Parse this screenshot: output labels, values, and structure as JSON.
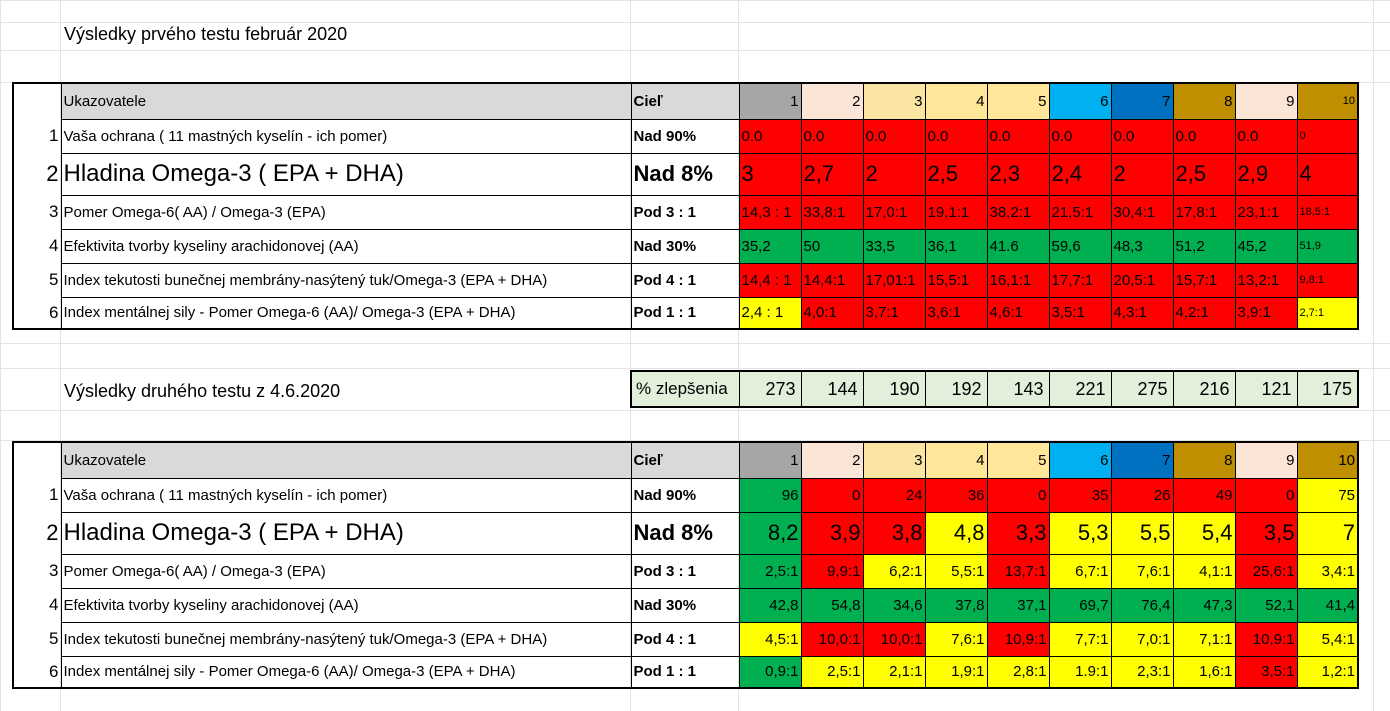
{
  "titles": {
    "first": "Výsledky prvého testu február 2020",
    "second": "Výsledky druhého testu z 4.6.2020"
  },
  "colors": {
    "red": "#ff0000",
    "green": "#00b050",
    "yellow": "#ffff00",
    "header_grey": "#d9d9d9",
    "improve_bg": "#e2efda",
    "col_colors": [
      "#a6a6a6",
      "#fbe5d6",
      "#fbe5a2",
      "#ffe699",
      "#ffe699",
      "#00b0f0",
      "#0070c0",
      "#bf8f00",
      "#fbe5d6",
      "#bf8f00"
    ]
  },
  "header": {
    "label": "Ukazovatele",
    "goal": "Cieľ",
    "cols": [
      "1",
      "2",
      "3",
      "4",
      "5",
      "6",
      "7",
      "8",
      "9",
      "10"
    ]
  },
  "rows": [
    {
      "n": "1",
      "label": "Vaša ochrana ( 11 mastných kyselín - ich pomer)",
      "goal": "Nad 90%"
    },
    {
      "n": "2",
      "label": "Hladina Omega-3 ( EPA + DHA)",
      "goal": "Nad 8%"
    },
    {
      "n": "3",
      "label": "Pomer Omega-6( AA) / Omega-3 (EPA)",
      "goal": "Pod 3 : 1"
    },
    {
      "n": "4",
      "label": "Efektivita tvorby kyseliny arachidonovej (AA)",
      "goal": "Nad 30%"
    },
    {
      "n": "5",
      "label": "Index tekutosti bunečnej membrány-nasýtený tuk/Omega-3 (EPA + DHA)",
      "goal": "Pod 4 : 1"
    },
    {
      "n": "6",
      "label": "Index mentálnej sily - Pomer Omega-6 (AA)/ Omega-3 (EPA + DHA)",
      "goal": "Pod 1 : 1"
    }
  ],
  "test1": [
    {
      "values": [
        "0.0",
        "0.0",
        "0.0",
        "0.0",
        "0.0",
        "0.0",
        "0.0",
        "0.0",
        "0.0",
        "0"
      ],
      "colors": [
        "red",
        "red",
        "red",
        "red",
        "red",
        "red",
        "red",
        "red",
        "red",
        "red"
      ]
    },
    {
      "values": [
        "3",
        "2,7",
        "2",
        "2,5",
        "2,3",
        "2,4",
        "2",
        "2,5",
        "2,9",
        "4"
      ],
      "colors": [
        "red",
        "red",
        "red",
        "red",
        "red",
        "red",
        "red",
        "red",
        "red",
        "red"
      ]
    },
    {
      "values": [
        "14,3 : 1",
        "33,8:1",
        "17,0:1",
        "19,1:1",
        "38,2:1",
        "21,5:1",
        "30,4:1",
        "17,8:1",
        "23,1:1",
        "18,5:1"
      ],
      "colors": [
        "red",
        "red",
        "red",
        "red",
        "red",
        "red",
        "red",
        "red",
        "red",
        "red"
      ]
    },
    {
      "values": [
        "35,2",
        "50",
        "33,5",
        "36,1",
        "41.6",
        "59,6",
        "48,3",
        "51,2",
        "45,2",
        "51,9"
      ],
      "colors": [
        "green",
        "green",
        "green",
        "green",
        "green",
        "green",
        "green",
        "green",
        "green",
        "green"
      ]
    },
    {
      "values": [
        "14,4 : 1",
        "14,4:1",
        "17,01:1",
        "15,5:1",
        "16,1:1",
        "17,7:1",
        "20,5:1",
        "15,7:1",
        "13,2:1",
        "9,8:1"
      ],
      "colors": [
        "red",
        "red",
        "red",
        "red",
        "red",
        "red",
        "red",
        "red",
        "red",
        "red"
      ]
    },
    {
      "values": [
        "2,4 : 1",
        "4,0:1",
        "3,7:1",
        "3,6:1",
        "4,6:1",
        "3,5:1",
        "4,3:1",
        "4,2:1",
        "3,9:1",
        "2,7:1"
      ],
      "colors": [
        "yellow",
        "red",
        "red",
        "red",
        "red",
        "red",
        "red",
        "red",
        "red",
        "yellow"
      ]
    }
  ],
  "improvement": {
    "label": "% zlepšenia",
    "values": [
      "273",
      "144",
      "190",
      "192",
      "143",
      "221",
      "275",
      "216",
      "121",
      "175"
    ]
  },
  "test2": [
    {
      "values": [
        "96",
        "0",
        "24",
        "36",
        "0",
        "35",
        "26",
        "49",
        "0",
        "75"
      ],
      "colors": [
        "green",
        "red",
        "red",
        "red",
        "red",
        "red",
        "red",
        "red",
        "red",
        "yellow"
      ]
    },
    {
      "values": [
        "8,2",
        "3,9",
        "3,8",
        "4,8",
        "3,3",
        "5,3",
        "5,5",
        "5,4",
        "3,5",
        "7"
      ],
      "colors": [
        "green",
        "red",
        "red",
        "yellow",
        "red",
        "yellow",
        "yellow",
        "yellow",
        "red",
        "yellow"
      ]
    },
    {
      "values": [
        "2,5:1",
        "9,9:1",
        "6,2:1",
        "5,5:1",
        "13,7:1",
        "6,7:1",
        "7,6:1",
        "4,1:1",
        "25,6:1",
        "3,4:1"
      ],
      "colors": [
        "green",
        "red",
        "yellow",
        "yellow",
        "red",
        "yellow",
        "yellow",
        "yellow",
        "red",
        "yellow"
      ]
    },
    {
      "values": [
        "42,8",
        "54,8",
        "34,6",
        "37,8",
        "37,1",
        "69,7",
        "76,4",
        "47,3",
        "52,1",
        "41,4"
      ],
      "colors": [
        "green",
        "green",
        "green",
        "green",
        "green",
        "green",
        "green",
        "green",
        "green",
        "green"
      ]
    },
    {
      "values": [
        "4,5:1",
        "10,0:1",
        "10,0:1",
        "7,6:1",
        "10,9:1",
        "7,7:1",
        "7,0:1",
        "7,1:1",
        "10,9:1",
        "5,4:1"
      ],
      "colors": [
        "yellow",
        "red",
        "red",
        "yellow",
        "red",
        "yellow",
        "yellow",
        "yellow",
        "red",
        "yellow"
      ]
    },
    {
      "values": [
        "0,9:1",
        "2,5:1",
        "2,1:1",
        "1,9:1",
        "2,8:1",
        "1.9:1",
        "2,3:1",
        "1,6:1",
        "3,5:1",
        "1,2:1"
      ],
      "colors": [
        "green",
        "yellow",
        "yellow",
        "yellow",
        "yellow",
        "yellow",
        "yellow",
        "yellow",
        "red",
        "yellow"
      ]
    }
  ]
}
